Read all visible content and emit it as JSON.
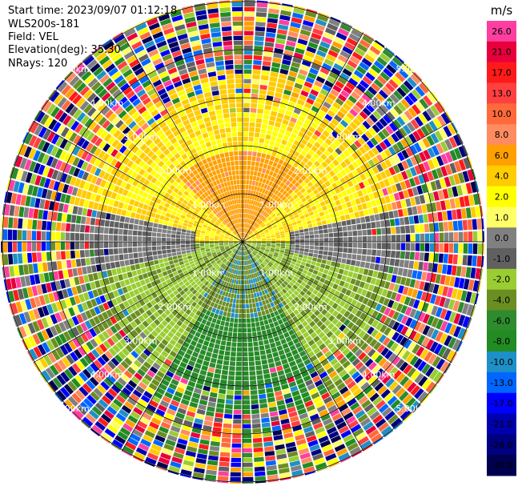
{
  "header": {
    "start_time": "Start time: 2023/09/07 01:12:18",
    "instrument": "WLS200s-181",
    "field": "Field: VEL",
    "elevation": "Elevation(deg): 35.30",
    "nrays": "NRays: 120"
  },
  "chart_data": {
    "type": "heatmap",
    "projection": "polar-ppi",
    "field": "VEL",
    "nrays": 120,
    "range_rings": [
      "1.00km",
      "2.00km",
      "3.00km",
      "4.00km",
      "5.00km"
    ],
    "colorbar": {
      "unit": "m/s",
      "ticks": [
        "26.0",
        "21.0",
        "17.0",
        "13.0",
        "10.0",
        "8.0",
        "6.0",
        "4.0",
        "2.0",
        "1.0",
        "0.0",
        "-1.0",
        "-2.0",
        "-4.0",
        "-6.0",
        "-8.0",
        "-10.0",
        "-13.0",
        "-17.0",
        "-21.0",
        "-26.0",
        "-30.0"
      ],
      "colors": [
        "#ff3fa0",
        "#e8003c",
        "#ff1a1a",
        "#ff4040",
        "#ff6a3c",
        "#ff8c60",
        "#ffa000",
        "#ffcc00",
        "#ffff00",
        "#ffff66",
        "#808080",
        "#606060",
        "#9acd32",
        "#6b8e23",
        "#2e8b2e",
        "#228b22",
        "#1e90c8",
        "#0066ff",
        "#0000ff",
        "#0000b0",
        "#000080",
        "#000050"
      ]
    }
  }
}
